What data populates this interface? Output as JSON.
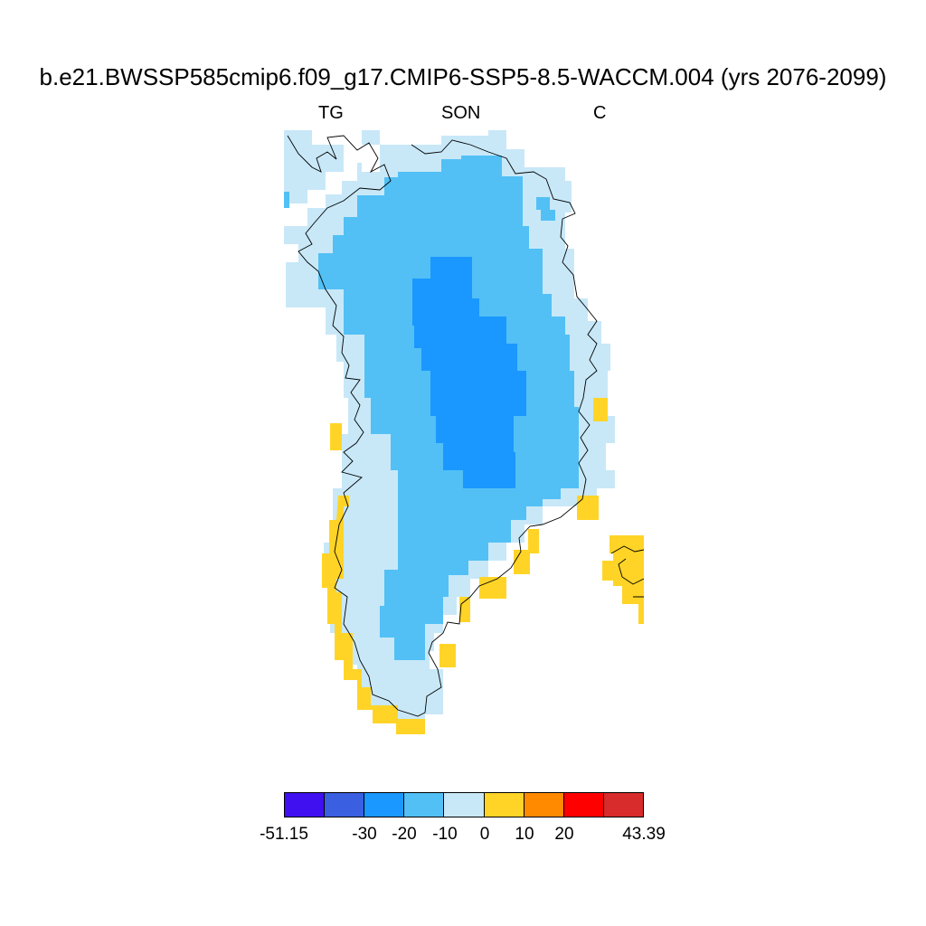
{
  "title": "b.e21.BWSSP585cmip6.f09_g17.CMIP6-SSP5-8.5-WACCM.004 (yrs 2076-2099)",
  "subtitle_left": "TG",
  "subtitle_center": "SON",
  "subtitle_right": "C",
  "colorbar": {
    "colors": [
      "#4010f0",
      "#3a5fe0",
      "#1a98ff",
      "#52c0f5",
      "#c8e8f8",
      "#ffd427",
      "#ff8a00",
      "#ff0000",
      "#d82b2b"
    ],
    "labels": [
      "-51.15",
      "-30",
      "-20",
      "-10",
      "0",
      "10",
      "20",
      "43.39"
    ]
  },
  "map": {
    "region": "Greenland",
    "levels": [
      -51.15,
      -30,
      -20,
      -10,
      0,
      10,
      20,
      43.39
    ],
    "fields": {
      "light_blue_fill": "#c8e8f8",
      "mid_blue_fill": "#52c0f5",
      "deep_blue_fill": "#1a98ff",
      "yellow_fill": "#ffd427"
    }
  }
}
